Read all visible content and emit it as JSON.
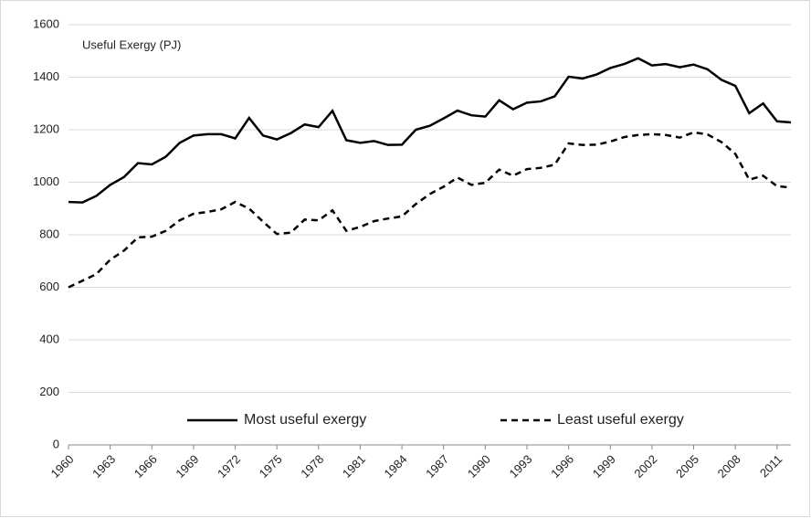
{
  "chart_data": {
    "type": "line",
    "y_label": "Useful Exergy (PJ)",
    "x": [
      1960,
      1961,
      1962,
      1963,
      1964,
      1965,
      1966,
      1967,
      1968,
      1969,
      1970,
      1971,
      1972,
      1973,
      1974,
      1975,
      1976,
      1977,
      1978,
      1979,
      1980,
      1981,
      1982,
      1983,
      1984,
      1985,
      1986,
      1987,
      1988,
      1989,
      1990,
      1991,
      1992,
      1993,
      1994,
      1995,
      1996,
      1997,
      1998,
      1999,
      2000,
      2001,
      2002,
      2003,
      2004,
      2005,
      2006,
      2007,
      2008,
      2009,
      2010,
      2011,
      2012
    ],
    "xlim": [
      1960,
      2012
    ],
    "xticks": [
      1960,
      1963,
      1966,
      1969,
      1972,
      1975,
      1978,
      1981,
      1984,
      1987,
      1990,
      1993,
      1996,
      1999,
      2002,
      2005,
      2008,
      2011
    ],
    "ylim": [
      0,
      1600
    ],
    "yticks": [
      0,
      200,
      400,
      600,
      800,
      1000,
      1200,
      1400,
      1600
    ],
    "grid": true,
    "legend": "bottom",
    "series": [
      {
        "name": "Most useful exergy",
        "color": "#000000",
        "dash": "solid",
        "values": [
          925,
          923,
          948,
          990,
          1020,
          1073,
          1068,
          1097,
          1150,
          1178,
          1183,
          1183,
          1167,
          1245,
          1178,
          1163,
          1187,
          1220,
          1210,
          1272,
          1160,
          1150,
          1157,
          1142,
          1143,
          1200,
          1215,
          1243,
          1273,
          1255,
          1250,
          1312,
          1278,
          1303,
          1308,
          1327,
          1402,
          1395,
          1410,
          1435,
          1450,
          1472,
          1445,
          1450,
          1438,
          1448,
          1430,
          1390,
          1367,
          1263,
          1300,
          1232,
          1228
        ]
      },
      {
        "name": "Least useful exergy",
        "color": "#000000",
        "dash": "dashed",
        "values": [
          600,
          625,
          650,
          705,
          740,
          790,
          793,
          815,
          855,
          880,
          887,
          897,
          925,
          900,
          850,
          803,
          808,
          858,
          855,
          893,
          815,
          830,
          852,
          862,
          870,
          917,
          955,
          983,
          1018,
          990,
          998,
          1048,
          1025,
          1050,
          1055,
          1067,
          1148,
          1142,
          1143,
          1155,
          1172,
          1180,
          1183,
          1180,
          1170,
          1190,
          1182,
          1153,
          1108,
          1010,
          1025,
          985,
          980
        ]
      }
    ]
  }
}
